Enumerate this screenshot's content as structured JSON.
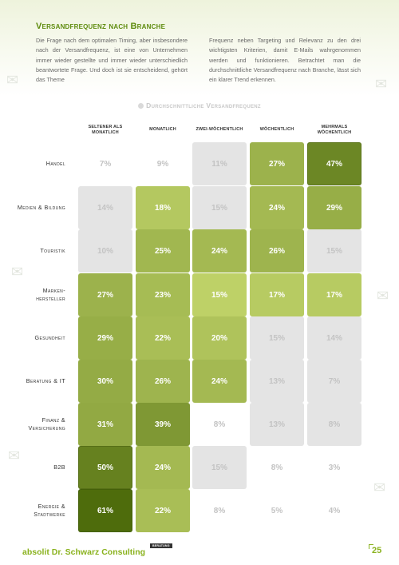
{
  "page": {
    "title": "Versandfrequenz nach Branche",
    "paragraph_left": "Die Frage nach dem optimalen Timing, aber insbesondere nach der Versandfrequenz, ist eine von Unternehmen immer wieder gestellte und immer wieder unterschiedlich beantwortete Frage. Und doch ist sie entscheidend, gehört das Theme",
    "paragraph_right": "Frequenz neben Targeting und Relevanz zu den drei wichtigsten Kriterien, damit E-Mails wahrgenommen werden und funktionieren. Betrachtet man die durchschnittliche Versandfrequenz nach Branche, lässt sich ein klarer Trend erkennen.",
    "footer_logo": "absolit Dr. Schwarz Consulting",
    "footer_badge": "BERATUNG",
    "page_number": "25"
  },
  "colors": {
    "accent": "#8ab21e",
    "title": "#5f8c0f",
    "low_cell": "#e4e4e4",
    "low_text": "#c3c3c3"
  },
  "chart_data": {
    "type": "heatmap",
    "title": "Durchschnittliche Versandfrequenz",
    "columns": [
      "Seltener als monatlich",
      "Monatlich",
      "Zwei-wöchentlich",
      "Wöchentlich",
      "Mehrmals wöchentlich"
    ],
    "rows": [
      "Handel",
      "Medien & Bildung",
      "Touristik",
      "Marken-hersteller",
      "Gesundheit",
      "Beratung & IT",
      "Finanz & Versicherung",
      "B2B",
      "Energie & Stadtwerke"
    ],
    "values": [
      [
        7,
        9,
        11,
        27,
        47
      ],
      [
        14,
        18,
        15,
        24,
        29
      ],
      [
        10,
        25,
        24,
        26,
        15
      ],
      [
        27,
        23,
        15,
        17,
        17
      ],
      [
        29,
        22,
        20,
        15,
        14
      ],
      [
        30,
        26,
        24,
        13,
        7
      ],
      [
        31,
        39,
        8,
        13,
        8
      ],
      [
        50,
        24,
        15,
        8,
        3
      ],
      [
        61,
        22,
        8,
        5,
        4
      ]
    ],
    "highlighted": [
      [
        false,
        false,
        false,
        true,
        true
      ],
      [
        false,
        true,
        false,
        true,
        true
      ],
      [
        false,
        true,
        true,
        true,
        false
      ],
      [
        true,
        true,
        true,
        true,
        true
      ],
      [
        true,
        true,
        true,
        false,
        false
      ],
      [
        true,
        true,
        true,
        false,
        false
      ],
      [
        true,
        true,
        false,
        false,
        false
      ],
      [
        true,
        true,
        false,
        false,
        false
      ],
      [
        true,
        true,
        false,
        false,
        false
      ]
    ],
    "unit": "%"
  }
}
